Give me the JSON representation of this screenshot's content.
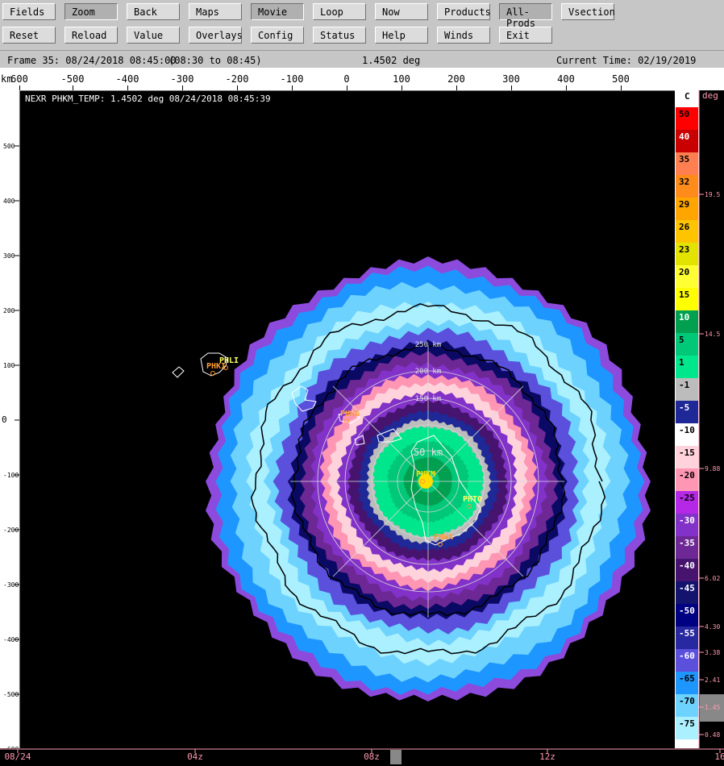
{
  "toolbar": {
    "row1": [
      {
        "id": "fields",
        "label": "Fields"
      },
      {
        "id": "zoom",
        "label": "Zoom"
      },
      {
        "id": "back",
        "label": "Back"
      },
      {
        "id": "maps",
        "label": "Maps"
      },
      {
        "id": "movie",
        "label": "Movie"
      },
      {
        "id": "loop",
        "label": "Loop"
      },
      {
        "id": "now",
        "label": "Now"
      },
      {
        "id": "products",
        "label": "Products"
      },
      {
        "id": "all-prods",
        "label": "All-Prods"
      },
      {
        "id": "vsection",
        "label": "Vsection"
      }
    ],
    "row2": [
      {
        "id": "reset",
        "label": "Reset"
      },
      {
        "id": "reload",
        "label": "Reload"
      },
      {
        "id": "value",
        "label": "Value"
      },
      {
        "id": "overlays",
        "label": "Overlays"
      },
      {
        "id": "config",
        "label": "Config"
      },
      {
        "id": "status",
        "label": "Status"
      },
      {
        "id": "help",
        "label": "Help"
      },
      {
        "id": "winds",
        "label": "Winds"
      },
      {
        "id": "exit",
        "label": "Exit"
      }
    ]
  },
  "status": {
    "frame": "Frame 35: 08/24/2018 08:45:00",
    "range": "(08:30 to 08:45)",
    "elevation": "1.4502 deg",
    "current_time": "Current Time: 02/19/2019 03:30:29"
  },
  "plot": {
    "title": "NEXR PHKM_TEMP: 1.4502 deg 08/24/2018 08:45:39",
    "units_label": "km",
    "x_ticks": [
      "600",
      "-500",
      "-400",
      "-300",
      "-200",
      "-100",
      "0",
      "100",
      "200",
      "300",
      "400",
      "500"
    ],
    "y_ticks": [
      "500",
      "400",
      "300",
      "200",
      "100",
      "0",
      "-100",
      "-200",
      "-300",
      "-400",
      "-500",
      "-600"
    ],
    "range_rings": [
      "50 km",
      "150 km",
      "200 km",
      "250 km"
    ],
    "stations": [
      "PHLI",
      "PHKI",
      "PHNG",
      "PHKM",
      "PHTO",
      "PHWA"
    ]
  },
  "colorbar": {
    "unit": "C",
    "entries": [
      {
        "label": "50",
        "color": "#ff0000"
      },
      {
        "label": "40",
        "color": "#c80000"
      },
      {
        "label": "35",
        "color": "#ff7f50"
      },
      {
        "label": "32",
        "color": "#ff8c1a"
      },
      {
        "label": "29",
        "color": "#ffa500"
      },
      {
        "label": "26",
        "color": "#ffc400"
      },
      {
        "label": "23",
        "color": "#e3e300"
      },
      {
        "label": "20",
        "color": "#ffff33"
      },
      {
        "label": "15",
        "color": "#ffff00"
      },
      {
        "label": "10",
        "color": "#00a050"
      },
      {
        "label": "5",
        "color": "#00c878"
      },
      {
        "label": "1",
        "color": "#00e68c"
      },
      {
        "label": "-1",
        "color": "#bcbcbc"
      },
      {
        "label": "-5",
        "color": "#1e2896"
      },
      {
        "label": "-10",
        "color": "#ffffff"
      },
      {
        "label": "-15",
        "color": "#ffd2dc"
      },
      {
        "label": "-20",
        "color": "#ff96b4"
      },
      {
        "label": "-25",
        "color": "#b428e6"
      },
      {
        "label": "-30",
        "color": "#8232c8"
      },
      {
        "label": "-35",
        "color": "#6e2896"
      },
      {
        "label": "-40",
        "color": "#46146e"
      },
      {
        "label": "-45",
        "color": "#14146e"
      },
      {
        "label": "-50",
        "color": "#000082"
      },
      {
        "label": "-55",
        "color": "#2828a0"
      },
      {
        "label": "-60",
        "color": "#5a50dc"
      },
      {
        "label": "-65",
        "color": "#1e96ff"
      },
      {
        "label": "-70",
        "color": "#6ed2ff"
      },
      {
        "label": "-75",
        "color": "#aaf0ff"
      }
    ]
  },
  "elevation_bar": {
    "unit": "deg",
    "ticks": [
      "19.5",
      "14.5",
      "9.88",
      "6.02",
      "4.30",
      "3.38",
      "2.41",
      "1.45",
      "0.48"
    ],
    "selected": "1.45"
  },
  "time_axis": {
    "labels": [
      "08/24",
      "04z",
      "08z",
      "12z",
      "16"
    ]
  },
  "echo_rings": [
    {
      "r": 272,
      "color": "#8c4bdc"
    },
    {
      "r": 262,
      "color": "#1e96ff"
    },
    {
      "r": 244,
      "color": "#6ed2ff"
    },
    {
      "r": 222,
      "color": "#aaf0ff"
    },
    {
      "r": 198,
      "color": "#6ed2ff"
    },
    {
      "r": 186,
      "color": "#5a50dc"
    },
    {
      "r": 170,
      "color": "#0a0a64"
    },
    {
      "r": 157,
      "color": "#6e2896"
    },
    {
      "r": 145,
      "color": "#8232c8"
    },
    {
      "r": 132,
      "color": "#ff96b4"
    },
    {
      "r": 122,
      "color": "#ffd2dc"
    },
    {
      "r": 110,
      "color": "#8232c8"
    },
    {
      "r": 98,
      "color": "#46146e"
    },
    {
      "r": 86,
      "color": "#1e2896"
    },
    {
      "r": 76,
      "color": "#bcbcbc"
    },
    {
      "r": 68,
      "color": "#00e68c"
    },
    {
      "r": 50,
      "color": "#00c878"
    },
    {
      "r": 30,
      "color": "#00a050"
    },
    {
      "r": 14,
      "color": "#00c878"
    }
  ]
}
